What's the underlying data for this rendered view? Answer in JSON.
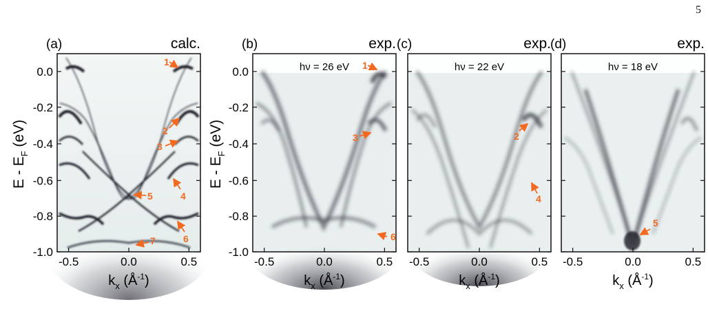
{
  "page_number": "5",
  "ylabel_main": "E - E",
  "ylabel_sub": "F",
  "ylabel_unit": " (eV)",
  "xlabel_main": "k",
  "xlabel_sub": "x",
  "xlabel_unit_pre": " (Å",
  "xlabel_unit_sup": "-1",
  "xlabel_unit_post": ")",
  "yticks": [
    "0.0",
    "-0.2",
    "-0.4",
    "-0.6",
    "-0.8",
    "-1.0"
  ],
  "xticks": [
    "-0.5",
    "0.0",
    "0.5"
  ],
  "colors": {
    "annotation": "#f26a21",
    "band": "#1b1c26",
    "background": "#e6eeed"
  },
  "panels": [
    {
      "label": "(a)",
      "tag": "calc.",
      "energy": "",
      "markers": [
        {
          "text": "1",
          "value": "band 1"
        },
        {
          "text": "2",
          "value": "band 2"
        },
        {
          "text": "3",
          "value": "band 3"
        },
        {
          "text": "4",
          "value": "band 4"
        },
        {
          "text": "5",
          "value": "band 5"
        },
        {
          "text": "6",
          "value": "band 6"
        },
        {
          "text": "7",
          "value": "band 7"
        }
      ]
    },
    {
      "label": "(b)",
      "tag": "exp.",
      "energy": "hν = 26 eV",
      "markers": [
        {
          "text": "1"
        },
        {
          "text": "3"
        },
        {
          "text": "6"
        }
      ]
    },
    {
      "label": "(c)",
      "tag": "exp.",
      "energy": "hν = 22 eV",
      "markers": [
        {
          "text": "2"
        },
        {
          "text": "4"
        }
      ]
    },
    {
      "label": "(d)",
      "tag": "exp.",
      "energy": "hν = 18 eV",
      "markers": [
        {
          "text": "5"
        }
      ]
    }
  ]
}
